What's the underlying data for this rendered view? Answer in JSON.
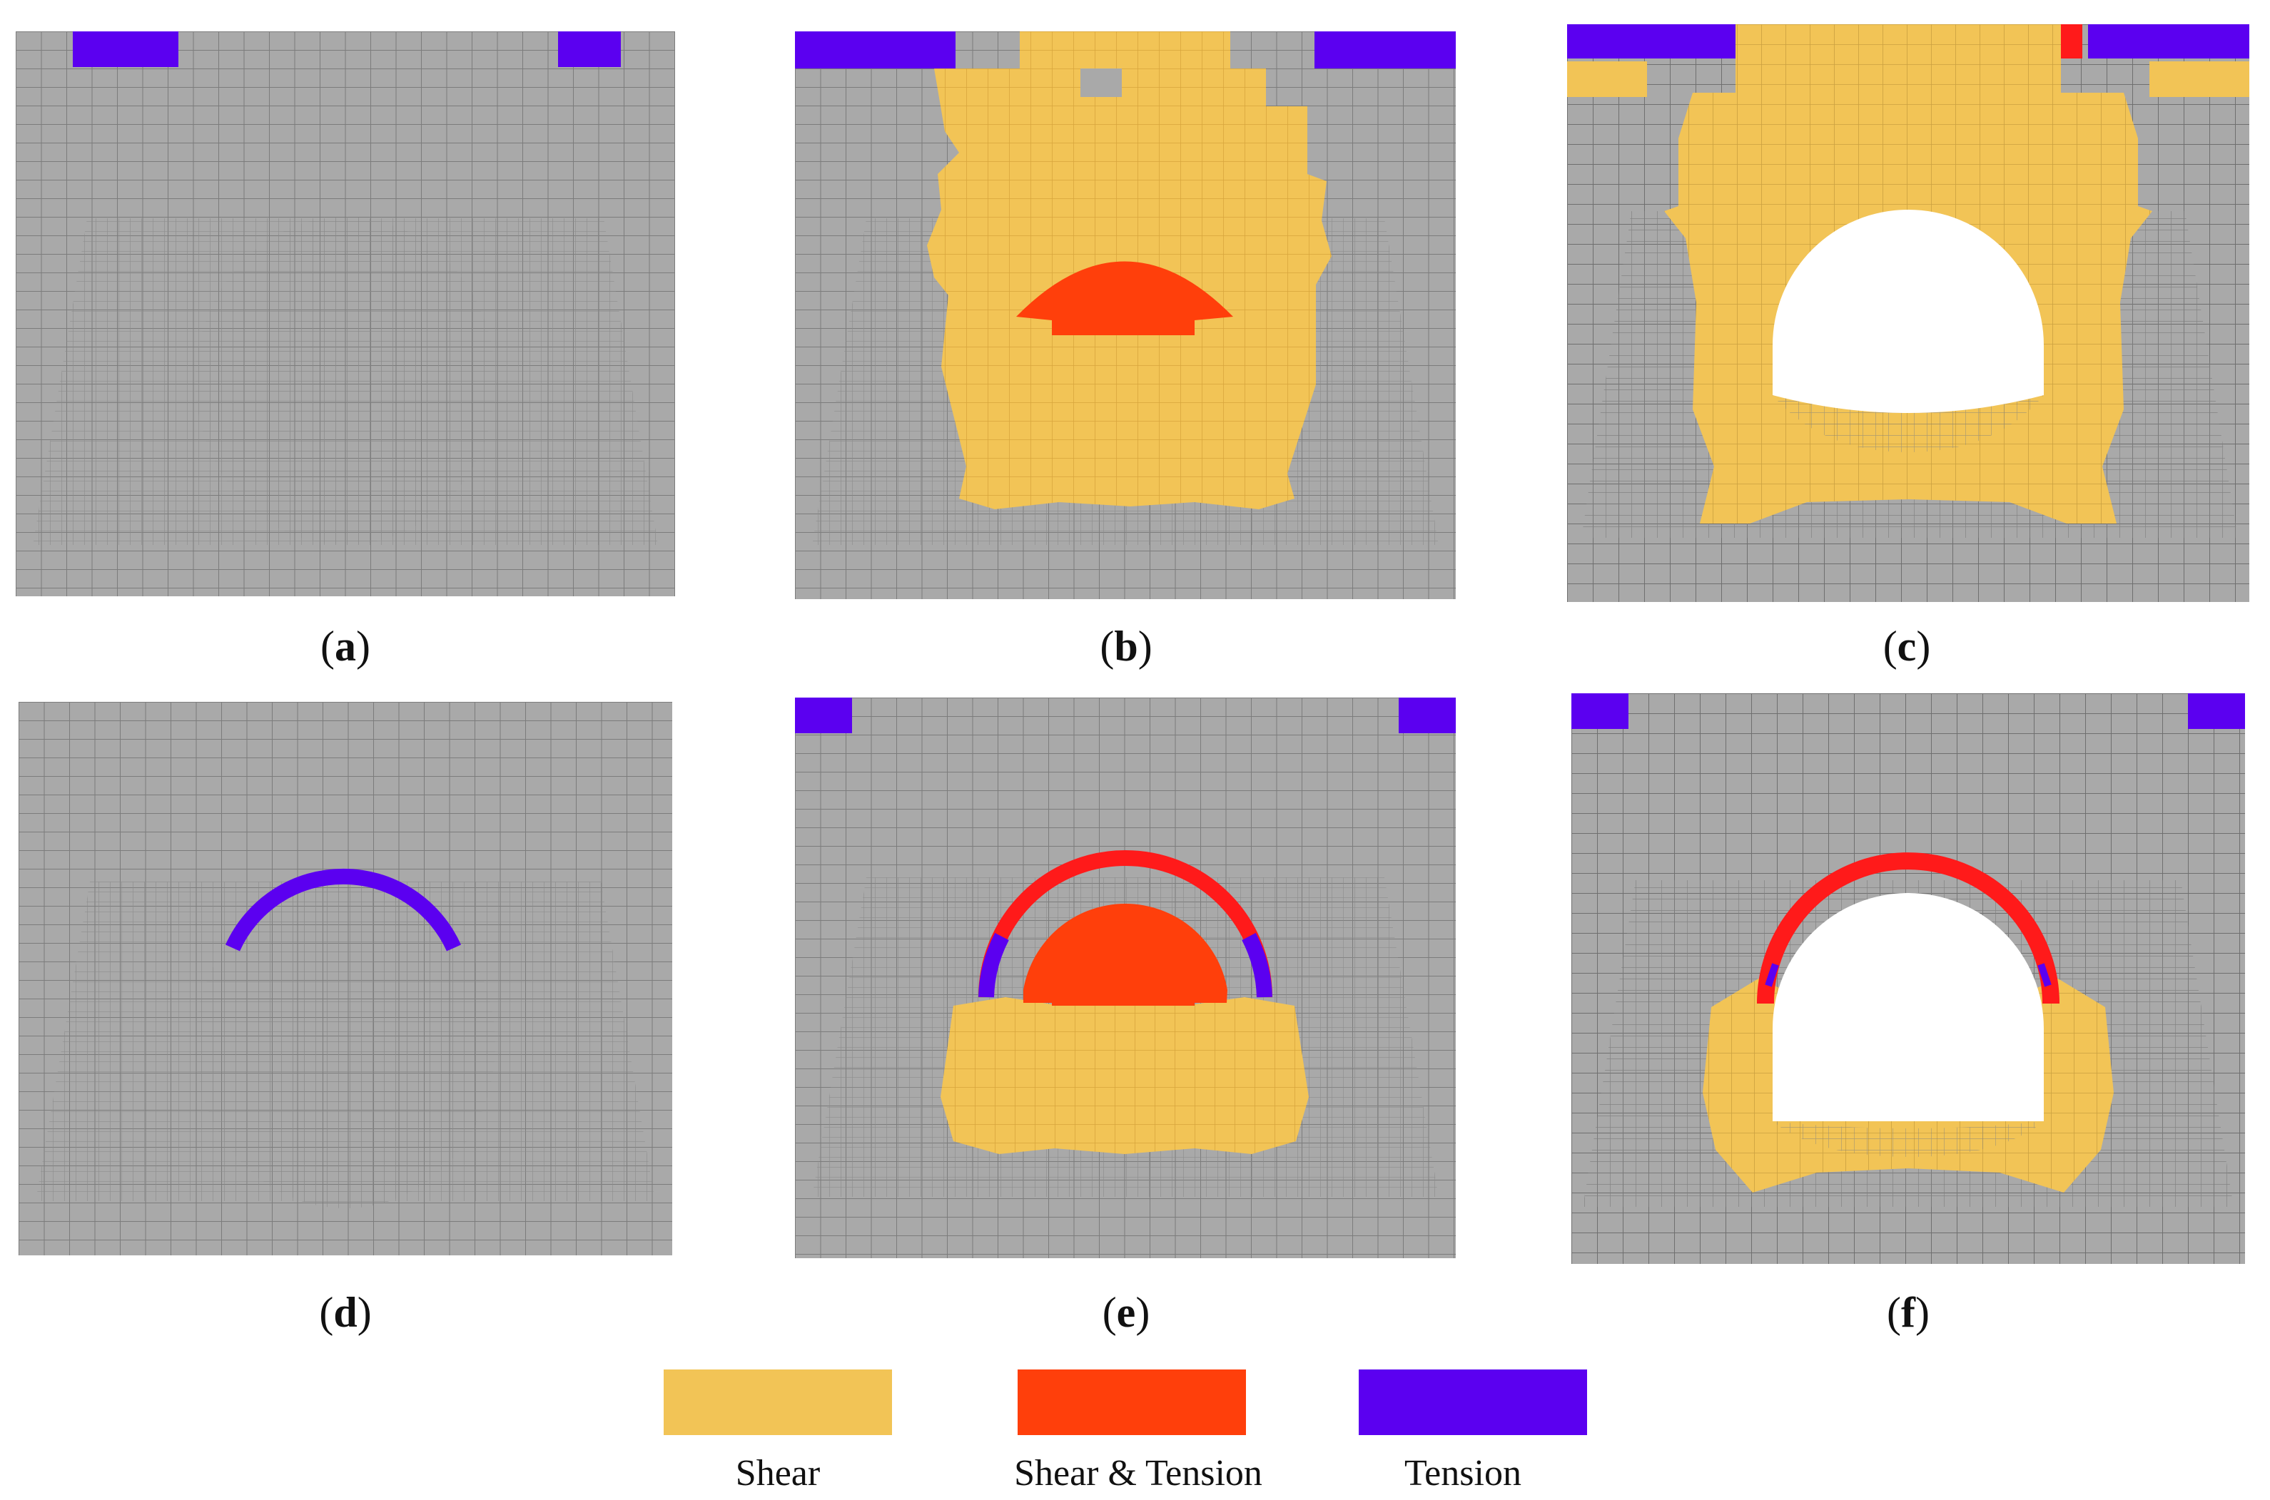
{
  "colors": {
    "mesh": "#a9a9a9",
    "grid_line": "#7c7c7c",
    "shear": "#f2c456",
    "shear_tension": "#ff3f0b",
    "tension": "#5b00f0",
    "red": "#ff1a1a",
    "void": "#ffffff"
  },
  "panels": [
    {
      "id": "a",
      "caption": "a"
    },
    {
      "id": "b",
      "caption": "b"
    },
    {
      "id": "c",
      "caption": "c"
    },
    {
      "id": "d",
      "caption": "d"
    },
    {
      "id": "e",
      "caption": "e"
    },
    {
      "id": "f",
      "caption": "f"
    }
  ],
  "legend": [
    {
      "label": "Shear",
      "color": "#f2c456"
    },
    {
      "label": "Shear & Tension",
      "color": "#ff3f0b"
    },
    {
      "label": "Tension",
      "color": "#5b00f0"
    }
  ]
}
